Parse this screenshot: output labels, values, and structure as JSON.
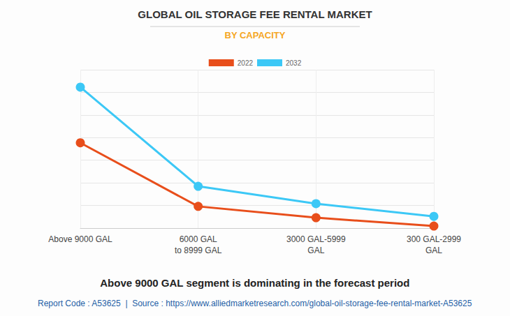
{
  "chart_data": {
    "type": "line",
    "title": "GLOBAL OIL STORAGE FEE RENTAL MARKET",
    "subtitle": "BY CAPACITY",
    "categories": [
      "Above 9000 GAL",
      "6000 GAL\nto 8999 GAL",
      "3000 GAL-5999\nGAL",
      "300 GAL-2999\nGAL"
    ],
    "series": [
      {
        "name": "2022",
        "color": "#e84e1b",
        "values": [
          3.77,
          0.96,
          0.46,
          0.09
        ]
      },
      {
        "name": "2032",
        "color": "#3cc8f6",
        "values": [
          6.23,
          1.85,
          1.08,
          0.52
        ]
      }
    ],
    "ylim": [
      0,
      7
    ],
    "yticks": [
      0,
      1,
      2,
      3,
      4,
      5,
      6,
      7
    ],
    "grid": true,
    "legend": "top",
    "tick_labels": "x",
    "marker": "circle",
    "annotations": [
      "Above 9000 GAL segment is dominating in the forecast period",
      "Report Code : A53625  |  Source : https://www.alliedmarketresearch.com/global-oil-storage-fee-rental-market-A53625"
    ]
  }
}
